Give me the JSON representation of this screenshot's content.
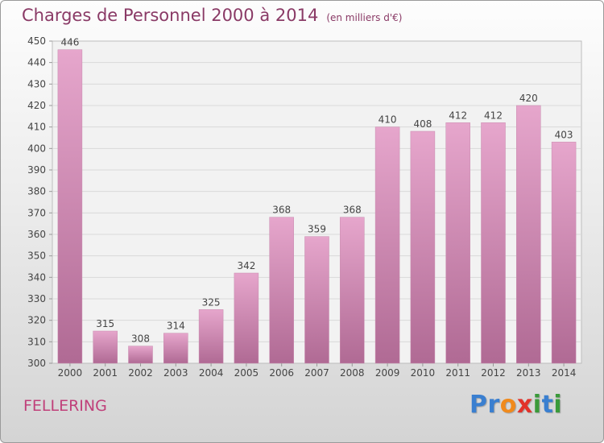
{
  "chart_data": {
    "type": "bar",
    "title": "Charges de Personnel 2000 à 2014",
    "subtitle": "(en milliers d'€)",
    "categories": [
      "2000",
      "2001",
      "2002",
      "2003",
      "2004",
      "2005",
      "2006",
      "2007",
      "2008",
      "2009",
      "2010",
      "2011",
      "2012",
      "2013",
      "2014"
    ],
    "values": [
      446,
      315,
      308,
      314,
      325,
      342,
      368,
      359,
      368,
      410,
      408,
      412,
      412,
      420,
      403
    ],
    "ylim": [
      300,
      450
    ],
    "yticks": [
      300,
      310,
      320,
      330,
      340,
      350,
      360,
      370,
      380,
      390,
      400,
      410,
      420,
      430,
      440,
      450
    ],
    "xlabel": "",
    "ylabel": "",
    "grid": true,
    "bar_color_top": "#e6a6cc",
    "bar_color_bottom": "#b06a94"
  },
  "location": "FELLERING",
  "brand": {
    "letters": [
      "P",
      "r",
      "o",
      "x",
      "i",
      "t",
      "i"
    ],
    "colors": [
      "#3a7fd0",
      "#3a7fd0",
      "#f08a1c",
      "#e2322a",
      "#3a9a3a",
      "#3a7fd0",
      "#3a9a3a"
    ]
  }
}
